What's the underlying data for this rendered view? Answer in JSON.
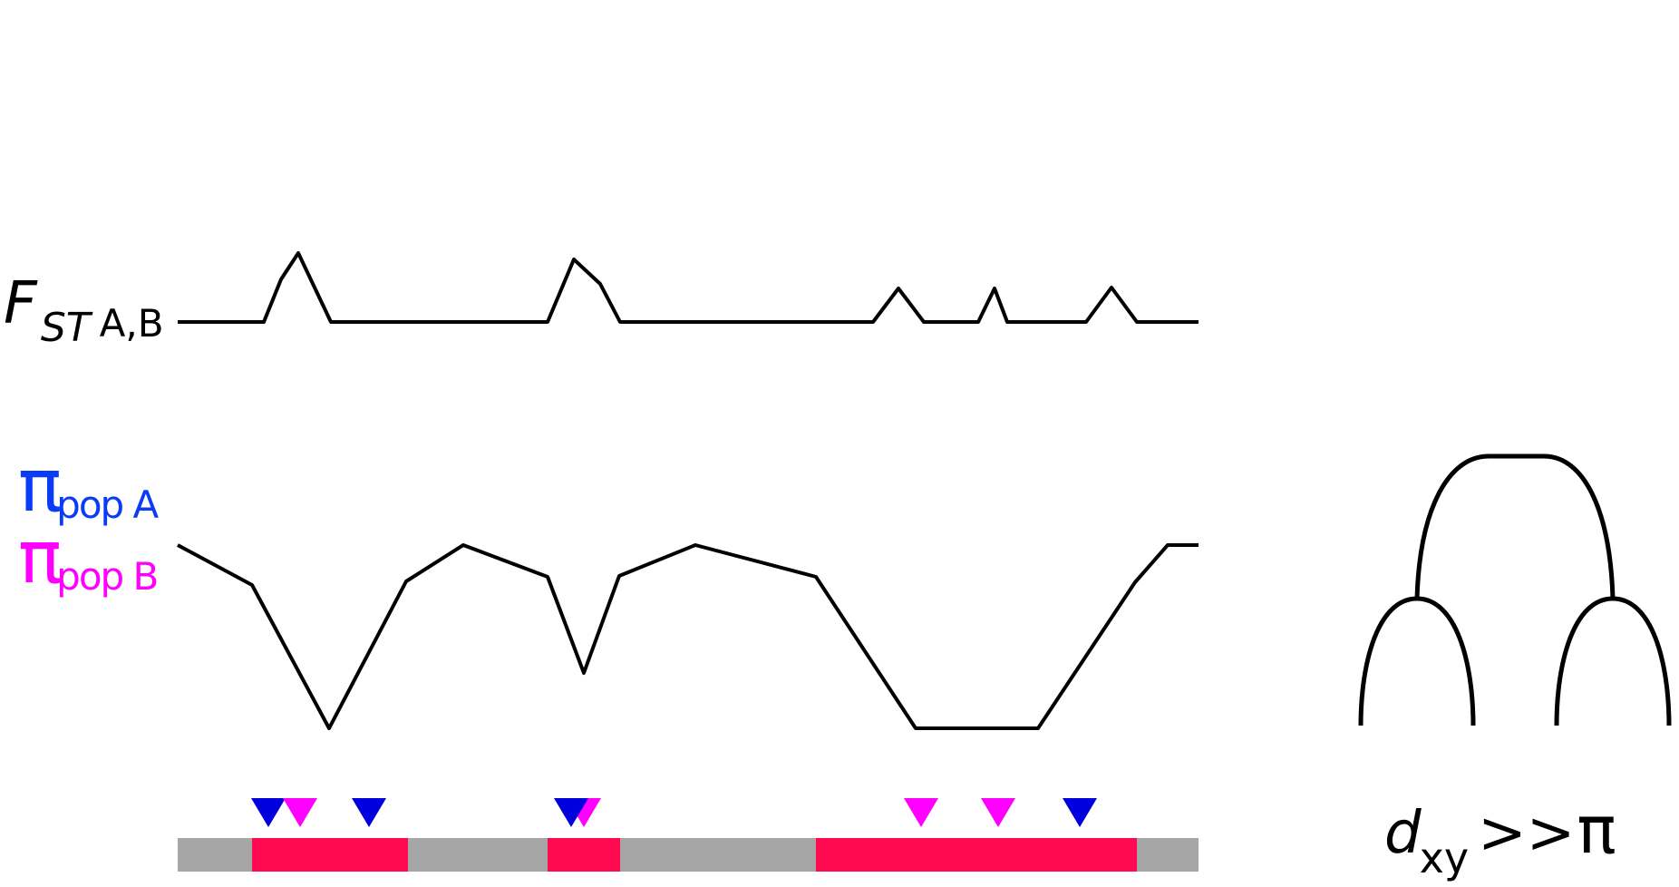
{
  "labels": {
    "fst": {
      "main": "F",
      "sub": "ST",
      "pops": "A,B"
    },
    "pi_a": {
      "symbol": "π",
      "sub": "pop A",
      "color": "#0a3cf5"
    },
    "pi_b": {
      "symbol": "π",
      "sub": "pop B",
      "color": "#ff00ff"
    },
    "dxy": {
      "main": "d",
      "sub": "xy",
      "relation": ">>",
      "symbol": "π"
    }
  },
  "colors": {
    "line": "#000000",
    "chromosome": "#a6a6a6",
    "region": "#ff0a50",
    "marker_a": "#0000dd",
    "marker_b": "#ff00ff"
  }
}
